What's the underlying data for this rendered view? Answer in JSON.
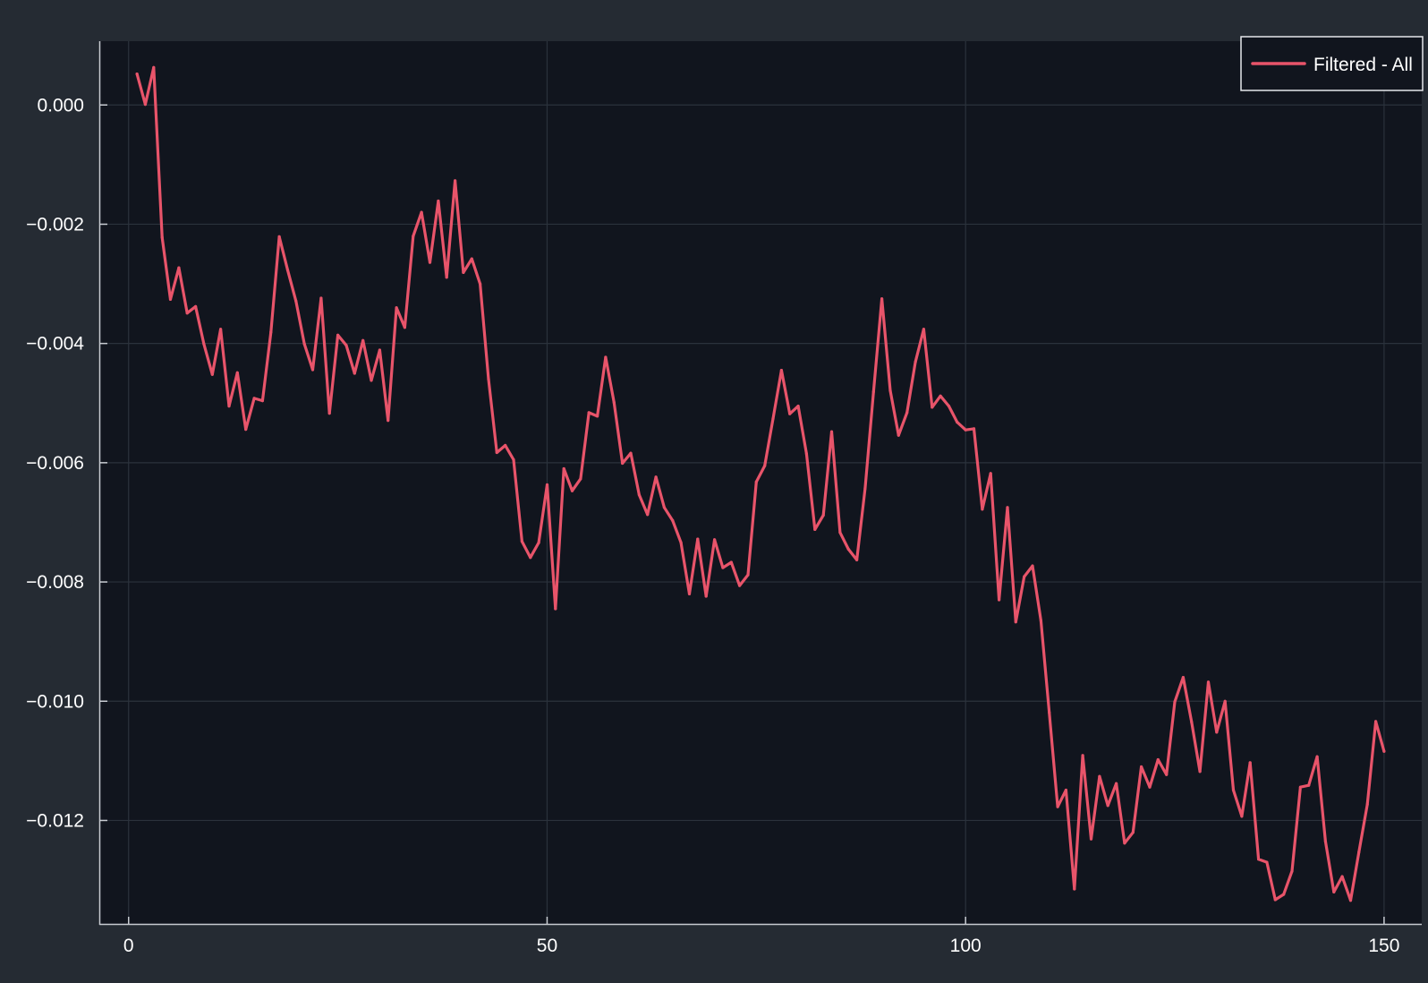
{
  "chart_data": {
    "type": "line",
    "title": "",
    "xlabel": "",
    "ylabel": "",
    "xlim": [
      -3.5,
      154.5
    ],
    "ylim": [
      -0.01375,
      0.00107
    ],
    "x_ticks": [
      0,
      50,
      100,
      150
    ],
    "x_tick_labels": [
      "0",
      "50",
      "100",
      "150"
    ],
    "y_ticks": [
      0.0,
      -0.002,
      -0.004,
      -0.006,
      -0.008,
      -0.01,
      -0.012
    ],
    "y_tick_labels": [
      "0.000",
      "−0.002",
      "−0.004",
      "−0.006",
      "−0.008",
      "−0.010",
      "−0.012"
    ],
    "grid": true,
    "legend_position": "top-right",
    "colors": {
      "page_background": "#252b33",
      "plot_background": "#11151e",
      "grid": "#2b323c",
      "axis": "#c8ccd2",
      "text": "#ffffff",
      "series": "#e8546a"
    },
    "series": [
      {
        "name": "Filtered - All",
        "color": "#e8546a",
        "x": [
          1,
          2,
          3,
          4,
          5,
          6,
          7,
          8,
          9,
          10,
          11,
          12,
          13,
          14,
          15,
          16,
          17,
          18,
          19,
          20,
          21,
          22,
          23,
          24,
          25,
          26,
          27,
          28,
          29,
          30,
          31,
          32,
          33,
          34,
          35,
          36,
          37,
          38,
          39,
          40,
          41,
          42,
          43,
          44,
          45,
          46,
          47,
          48,
          49,
          50,
          51,
          52,
          53,
          54,
          55,
          56,
          57,
          58,
          59,
          60,
          61,
          62,
          63,
          64,
          65,
          66,
          67,
          68,
          69,
          70,
          71,
          72,
          73,
          74,
          75,
          76,
          77,
          78,
          79,
          80,
          81,
          82,
          83,
          84,
          85,
          86,
          87,
          88,
          89,
          90,
          91,
          92,
          93,
          94,
          95,
          96,
          97,
          98,
          99,
          100,
          101,
          102,
          103,
          104,
          105,
          106,
          107,
          108,
          109,
          110,
          111,
          112,
          113,
          114,
          115,
          116,
          117,
          118,
          119,
          120,
          121,
          122,
          123,
          124,
          125,
          126,
          127,
          128,
          129,
          130,
          131,
          132,
          133,
          134,
          135,
          136,
          137,
          138,
          139,
          140,
          141,
          142,
          143,
          144,
          145,
          146,
          147,
          148,
          149,
          150
        ],
        "values": [
          0.00052,
          1e-05,
          0.00063,
          -0.00222,
          -0.00326,
          -0.00273,
          -0.00349,
          -0.00338,
          -0.00401,
          -0.00452,
          -0.00376,
          -0.00505,
          -0.00449,
          -0.00544,
          -0.00492,
          -0.00496,
          -0.00381,
          -0.00221,
          -0.00277,
          -0.00329,
          -0.00401,
          -0.00444,
          -0.00324,
          -0.00517,
          -0.00386,
          -0.00403,
          -0.0045,
          -0.00395,
          -0.00462,
          -0.00411,
          -0.00529,
          -0.0034,
          -0.00373,
          -0.0022,
          -0.0018,
          -0.00264,
          -0.00161,
          -0.00289,
          -0.00127,
          -0.00281,
          -0.00258,
          -0.003,
          -0.0046,
          -0.00583,
          -0.00571,
          -0.00595,
          -0.00732,
          -0.00759,
          -0.00734,
          -0.00637,
          -0.00845,
          -0.0061,
          -0.00647,
          -0.00627,
          -0.00516,
          -0.00522,
          -0.00423,
          -0.00499,
          -0.00601,
          -0.00584,
          -0.00654,
          -0.00687,
          -0.00624,
          -0.00675,
          -0.00697,
          -0.00734,
          -0.0082,
          -0.00728,
          -0.00824,
          -0.00729,
          -0.00776,
          -0.00767,
          -0.00806,
          -0.00788,
          -0.00632,
          -0.00605,
          -0.00526,
          -0.00445,
          -0.00518,
          -0.00505,
          -0.00585,
          -0.00712,
          -0.00688,
          -0.00548,
          -0.00717,
          -0.00745,
          -0.00763,
          -0.00643,
          -0.00481,
          -0.00325,
          -0.00479,
          -0.00554,
          -0.00516,
          -0.00431,
          -0.00376,
          -0.00507,
          -0.00488,
          -0.00505,
          -0.00532,
          -0.00545,
          -0.00543,
          -0.00678,
          -0.00618,
          -0.0083,
          -0.00675,
          -0.00867,
          -0.00791,
          -0.00773,
          -0.00865,
          -0.01019,
          -0.01177,
          -0.01149,
          -0.01315,
          -0.01091,
          -0.01231,
          -0.01126,
          -0.01175,
          -0.01138,
          -0.01238,
          -0.0122,
          -0.0111,
          -0.01144,
          -0.01098,
          -0.01123,
          -0.01001,
          -0.0096,
          -0.01035,
          -0.01118,
          -0.00968,
          -0.01052,
          -0.01,
          -0.01149,
          -0.01193,
          -0.01103,
          -0.01265,
          -0.0127,
          -0.01333,
          -0.01324,
          -0.01285,
          -0.01144,
          -0.01141,
          -0.01093,
          -0.01235,
          -0.0132,
          -0.01294,
          -0.01334,
          -0.01253,
          -0.01173,
          -0.01034,
          -0.01084
        ]
      }
    ]
  }
}
